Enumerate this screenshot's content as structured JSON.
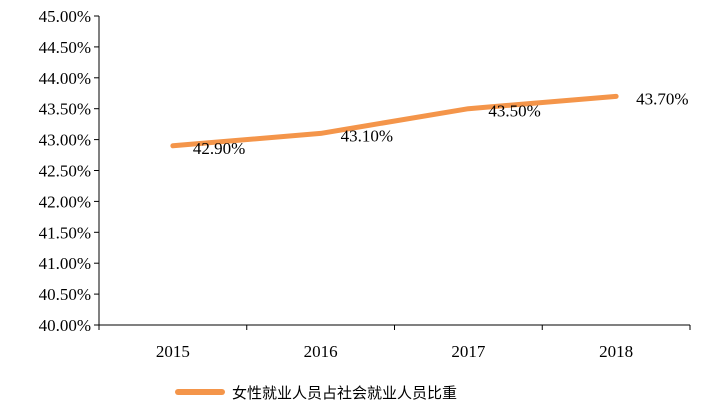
{
  "chart_data": {
    "type": "line",
    "categories": [
      "2015",
      "2016",
      "2017",
      "2018"
    ],
    "series": [
      {
        "name": "女性就业人员占社会就业人员比重",
        "values": [
          42.9,
          43.1,
          43.5,
          43.7
        ],
        "data_labels": [
          "42.90%",
          "43.10%",
          "43.50%",
          "43.70%"
        ],
        "color": "#F4954A"
      }
    ],
    "y_ticks": [
      "40.00%",
      "40.50%",
      "41.00%",
      "41.50%",
      "42.00%",
      "42.50%",
      "43.00%",
      "43.50%",
      "44.00%",
      "44.50%",
      "45.00%"
    ],
    "ylim": [
      40,
      45
    ],
    "grid": false,
    "legend_position": "bottom"
  }
}
